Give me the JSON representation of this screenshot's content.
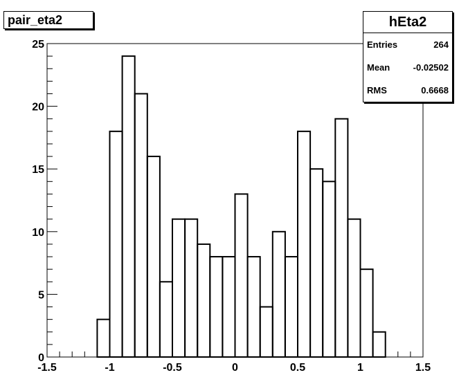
{
  "title": "pair_eta2",
  "stats": {
    "name": "hEta2",
    "rows": [
      {
        "label": "Entries",
        "value": "264"
      },
      {
        "label": "Mean",
        "value": "-0.02502"
      },
      {
        "label": "RMS",
        "value": "0.6668"
      }
    ]
  },
  "chart_data": {
    "type": "bar",
    "title": "pair_eta2",
    "xlim": [
      -1.5,
      1.5
    ],
    "ylim": [
      0,
      25
    ],
    "bin_width": 0.1,
    "x_ticks": [
      -1.5,
      -1,
      -0.5,
      0,
      0.5,
      1,
      1.5
    ],
    "x_tick_labels": [
      "-1.5",
      "-1",
      "-0.5",
      "0",
      "0.5",
      "1",
      "1.5"
    ],
    "y_ticks": [
      0,
      5,
      10,
      15,
      20,
      25
    ],
    "y_tick_labels": [
      "0",
      "5",
      "10",
      "15",
      "20",
      "25"
    ],
    "bin_low_edges": [
      -1.1,
      -1.0,
      -0.9,
      -0.8,
      -0.7,
      -0.6,
      -0.5,
      -0.4,
      -0.3,
      -0.2,
      -0.1,
      0.0,
      0.1,
      0.2,
      0.3,
      0.4,
      0.5,
      0.6,
      0.7,
      0.8,
      0.9,
      1.0,
      1.1
    ],
    "values": [
      3,
      18,
      24,
      21,
      16,
      6,
      11,
      11,
      9,
      8,
      8,
      13,
      8,
      4,
      10,
      8,
      18,
      15,
      14,
      19,
      11,
      7,
      2
    ],
    "grid": false,
    "style": "step-histogram"
  }
}
